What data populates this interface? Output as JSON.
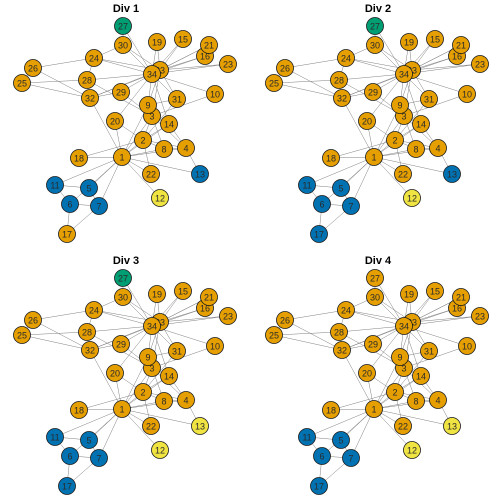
{
  "colors": {
    "orange": "#E69F00",
    "blue": "#0072B2",
    "green": "#009E73",
    "yellow": "#F0E442",
    "edge": "#808080",
    "node_border": "#1a1a1a"
  },
  "nodes": [
    "1",
    "2",
    "3",
    "4",
    "5",
    "6",
    "7",
    "8",
    "9",
    "10",
    "11",
    "12",
    "13",
    "14",
    "15",
    "16",
    "17",
    "18",
    "19",
    "20",
    "21",
    "22",
    "23",
    "24",
    "25",
    "26",
    "27",
    "28",
    "29",
    "30",
    "31",
    "32",
    "33",
    "34"
  ],
  "edges": [
    [
      "1",
      "2"
    ],
    [
      "1",
      "3"
    ],
    [
      "1",
      "4"
    ],
    [
      "1",
      "5"
    ],
    [
      "1",
      "6"
    ],
    [
      "1",
      "7"
    ],
    [
      "1",
      "8"
    ],
    [
      "1",
      "9"
    ],
    [
      "1",
      "11"
    ],
    [
      "1",
      "12"
    ],
    [
      "1",
      "13"
    ],
    [
      "1",
      "14"
    ],
    [
      "1",
      "18"
    ],
    [
      "1",
      "20"
    ],
    [
      "1",
      "22"
    ],
    [
      "1",
      "32"
    ],
    [
      "2",
      "3"
    ],
    [
      "2",
      "4"
    ],
    [
      "2",
      "8"
    ],
    [
      "2",
      "14"
    ],
    [
      "2",
      "18"
    ],
    [
      "2",
      "20"
    ],
    [
      "2",
      "22"
    ],
    [
      "2",
      "31"
    ],
    [
      "3",
      "4"
    ],
    [
      "3",
      "8"
    ],
    [
      "3",
      "9"
    ],
    [
      "3",
      "10"
    ],
    [
      "3",
      "14"
    ],
    [
      "3",
      "28"
    ],
    [
      "3",
      "29"
    ],
    [
      "3",
      "33"
    ],
    [
      "4",
      "8"
    ],
    [
      "4",
      "13"
    ],
    [
      "4",
      "14"
    ],
    [
      "5",
      "7"
    ],
    [
      "5",
      "11"
    ],
    [
      "6",
      "7"
    ],
    [
      "6",
      "11"
    ],
    [
      "6",
      "17"
    ],
    [
      "7",
      "17"
    ],
    [
      "9",
      "31"
    ],
    [
      "9",
      "33"
    ],
    [
      "9",
      "34"
    ],
    [
      "10",
      "34"
    ],
    [
      "14",
      "34"
    ],
    [
      "15",
      "33"
    ],
    [
      "15",
      "34"
    ],
    [
      "16",
      "33"
    ],
    [
      "16",
      "34"
    ],
    [
      "19",
      "33"
    ],
    [
      "19",
      "34"
    ],
    [
      "20",
      "34"
    ],
    [
      "21",
      "33"
    ],
    [
      "21",
      "34"
    ],
    [
      "23",
      "33"
    ],
    [
      "23",
      "34"
    ],
    [
      "24",
      "26"
    ],
    [
      "24",
      "28"
    ],
    [
      "24",
      "30"
    ],
    [
      "24",
      "33"
    ],
    [
      "24",
      "34"
    ],
    [
      "25",
      "26"
    ],
    [
      "25",
      "28"
    ],
    [
      "25",
      "32"
    ],
    [
      "26",
      "32"
    ],
    [
      "27",
      "30"
    ],
    [
      "27",
      "34"
    ],
    [
      "28",
      "34"
    ],
    [
      "29",
      "32"
    ],
    [
      "29",
      "34"
    ],
    [
      "30",
      "33"
    ],
    [
      "30",
      "34"
    ],
    [
      "31",
      "33"
    ],
    [
      "31",
      "34"
    ],
    [
      "32",
      "33"
    ],
    [
      "32",
      "34"
    ],
    [
      "33",
      "34"
    ]
  ],
  "panels": [
    {
      "title": "Div 1",
      "communities": {
        "1": "orange",
        "2": "orange",
        "3": "orange",
        "4": "orange",
        "5": "blue",
        "6": "blue",
        "7": "blue",
        "8": "orange",
        "9": "orange",
        "10": "orange",
        "11": "blue",
        "12": "yellow",
        "13": "blue",
        "14": "orange",
        "15": "orange",
        "16": "orange",
        "17": "orange",
        "18": "orange",
        "19": "orange",
        "20": "orange",
        "21": "orange",
        "22": "orange",
        "23": "orange",
        "24": "orange",
        "25": "orange",
        "26": "orange",
        "27": "green",
        "28": "orange",
        "29": "orange",
        "30": "orange",
        "31": "orange",
        "32": "orange",
        "33": "orange",
        "34": "orange"
      }
    },
    {
      "title": "Div 2",
      "communities": {
        "1": "orange",
        "2": "orange",
        "3": "orange",
        "4": "orange",
        "5": "blue",
        "6": "blue",
        "7": "blue",
        "8": "orange",
        "9": "orange",
        "10": "orange",
        "11": "blue",
        "12": "yellow",
        "13": "blue",
        "14": "orange",
        "15": "orange",
        "16": "orange",
        "17": "blue",
        "18": "orange",
        "19": "orange",
        "20": "orange",
        "21": "orange",
        "22": "orange",
        "23": "orange",
        "24": "orange",
        "25": "orange",
        "26": "orange",
        "27": "green",
        "28": "orange",
        "29": "orange",
        "30": "orange",
        "31": "orange",
        "32": "orange",
        "33": "orange",
        "34": "orange"
      }
    },
    {
      "title": "Div 3",
      "communities": {
        "1": "orange",
        "2": "orange",
        "3": "orange",
        "4": "orange",
        "5": "blue",
        "6": "blue",
        "7": "blue",
        "8": "orange",
        "9": "orange",
        "10": "orange",
        "11": "blue",
        "12": "yellow",
        "13": "yellow",
        "14": "orange",
        "15": "orange",
        "16": "orange",
        "17": "blue",
        "18": "orange",
        "19": "orange",
        "20": "orange",
        "21": "orange",
        "22": "orange",
        "23": "orange",
        "24": "orange",
        "25": "orange",
        "26": "orange",
        "27": "green",
        "28": "orange",
        "29": "orange",
        "30": "orange",
        "31": "orange",
        "32": "orange",
        "33": "orange",
        "34": "orange"
      }
    },
    {
      "title": "Div 4",
      "communities": {
        "1": "orange",
        "2": "orange",
        "3": "orange",
        "4": "orange",
        "5": "blue",
        "6": "blue",
        "7": "blue",
        "8": "orange",
        "9": "orange",
        "10": "orange",
        "11": "blue",
        "12": "yellow",
        "13": "yellow",
        "14": "orange",
        "15": "orange",
        "16": "orange",
        "17": "blue",
        "18": "orange",
        "19": "orange",
        "20": "orange",
        "21": "orange",
        "22": "orange",
        "23": "orange",
        "24": "orange",
        "25": "orange",
        "26": "orange",
        "27": "orange",
        "28": "orange",
        "29": "orange",
        "30": "orange",
        "31": "orange",
        "32": "orange",
        "33": "orange",
        "34": "orange"
      }
    }
  ]
}
